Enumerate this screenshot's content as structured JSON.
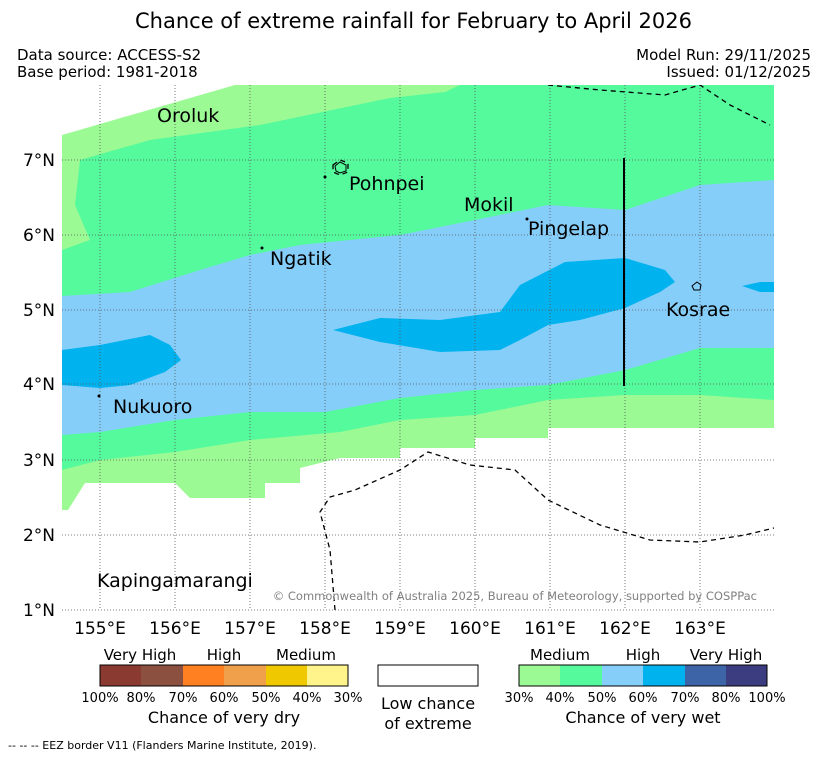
{
  "title": "Chance of extreme rainfall for February to April 2026",
  "header": {
    "data_source": "Data source: ACCESS-S2",
    "base_period": "Base period: 1981-2018",
    "model_run": "Model Run: 29/11/2025",
    "issued": "Issued: 01/12/2025"
  },
  "map": {
    "lon_labels": [
      "155°E",
      "156°E",
      "157°E",
      "158°E",
      "159°E",
      "160°E",
      "161°E",
      "162°E",
      "163°E"
    ],
    "lat_labels": [
      "7°N",
      "6°N",
      "5°N",
      "4°N",
      "3°N",
      "2°N",
      "1°N"
    ],
    "places": {
      "oroluk": "Oroluk",
      "pohnpei": "Pohnpei",
      "mokil": "Mokil",
      "pingelap": "Pingelap",
      "ngatik": "Ngatik",
      "kosrae": "Kosrae",
      "nukuoro": "Nukuoro",
      "kapingamarangi": "Kapingamarangi"
    },
    "copyright": "© Commonwealth of Australia 2025, Bureau of Meteorology, supported by COSPPac",
    "colors": {
      "wet_medium_30": "#9cfa94",
      "wet_medium_40": "#54fa9c",
      "wet_high_50": "#86cefa",
      "wet_high_60": "#00b2ee",
      "wet_very_high_70": "#3c64a6",
      "wet_very_high_80": "#3c3c80",
      "dry_very_high_100": "#8b3a32",
      "dry_very_high_80": "#8b5040",
      "dry_high_70": "#ff8020",
      "dry_high_60": "#f0a04a",
      "dry_medium_50": "#f0c800",
      "dry_medium_40": "#fff48c"
    }
  },
  "legend": {
    "dry": {
      "groups": [
        "Very High",
        "High",
        "Medium"
      ],
      "ticks": [
        "100%",
        "80%",
        "70%",
        "60%",
        "50%",
        "40%",
        "30%"
      ],
      "caption": "Chance of very dry"
    },
    "low": {
      "caption_line1": "Low chance",
      "caption_line2": "of extreme"
    },
    "wet": {
      "groups": [
        "Medium",
        "High",
        "Very High"
      ],
      "ticks": [
        "30%",
        "40%",
        "50%",
        "60%",
        "70%",
        "80%",
        "100%"
      ],
      "caption": "Chance of very wet"
    }
  },
  "footnote": "-- -- -- EEZ border V11 (Flanders Marine Institute, 2019)."
}
